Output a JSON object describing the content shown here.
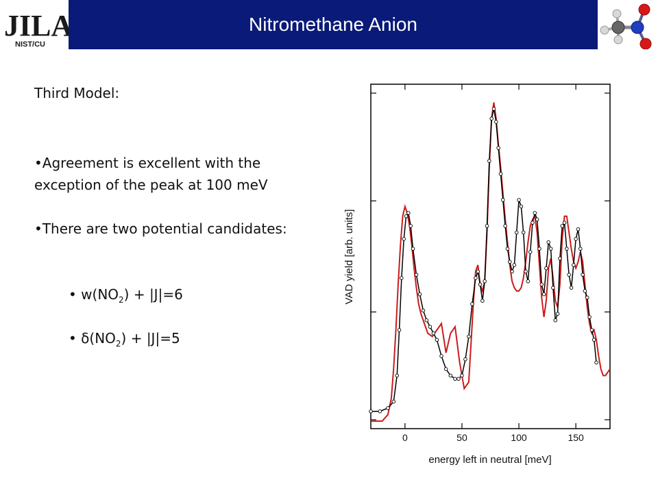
{
  "header": {
    "logo_text": "JILA",
    "logo_subtext": "NIST/CU",
    "title": "Nitromethane Anion",
    "molecule_icon": "nitromethane-molecule"
  },
  "content": {
    "model": "Third Model:",
    "bullet1": "•Agreement is excellent with the exception of the peak at 100 meV",
    "bullet2": "•There are two potential candidates:",
    "candidate1": {
      "prefix": "• w(NO",
      "sub": "2",
      "suffix": ") + |J|=6"
    },
    "candidate2": {
      "prefix": "• δ(NO",
      "sub": "2",
      "suffix": ") + |J|=5"
    }
  },
  "chart_data": {
    "type": "line",
    "xlabel": "energy left in neutral [meV]",
    "ylabel": "VAD yield [arb. units]",
    "xlim": [
      -30,
      180
    ],
    "ylim": [
      0,
      1
    ],
    "x_ticks": [
      0,
      50,
      100,
      150
    ],
    "colors": {
      "experiment": "#000000",
      "model": "#cc1a1a"
    },
    "series": [
      {
        "name": "",
        "style": "black line with open circle markers",
        "x": [
          -30,
          -22,
          -15,
          -10,
          -7,
          -5,
          -3,
          -1,
          1,
          3,
          5,
          7,
          10,
          13,
          16,
          19,
          22,
          25,
          28,
          32,
          36,
          40,
          44,
          47,
          50,
          53,
          56,
          59,
          62,
          64,
          66,
          68,
          70,
          72,
          74,
          76,
          78,
          80,
          82,
          84,
          86,
          88,
          90,
          92,
          94,
          96,
          98,
          100,
          102,
          104,
          106,
          108,
          110,
          112,
          114,
          116,
          118,
          120,
          122,
          124,
          126,
          128,
          130,
          132,
          134,
          136,
          138,
          140,
          142,
          144,
          146,
          148,
          150,
          152,
          154,
          156,
          158,
          160,
          162,
          164,
          166,
          168
        ],
        "y": [
          0.03,
          0.03,
          0.04,
          0.06,
          0.14,
          0.28,
          0.44,
          0.56,
          0.63,
          0.64,
          0.6,
          0.53,
          0.45,
          0.39,
          0.34,
          0.31,
          0.29,
          0.27,
          0.25,
          0.2,
          0.16,
          0.14,
          0.13,
          0.13,
          0.14,
          0.19,
          0.26,
          0.36,
          0.44,
          0.46,
          0.42,
          0.37,
          0.43,
          0.6,
          0.8,
          0.93,
          0.96,
          0.92,
          0.84,
          0.76,
          0.68,
          0.6,
          0.53,
          0.49,
          0.46,
          0.48,
          0.58,
          0.68,
          0.66,
          0.58,
          0.46,
          0.43,
          0.52,
          0.61,
          0.64,
          0.62,
          0.53,
          0.42,
          0.39,
          0.47,
          0.55,
          0.53,
          0.41,
          0.31,
          0.33,
          0.5,
          0.6,
          0.61,
          0.53,
          0.45,
          0.41,
          0.48,
          0.56,
          0.59,
          0.53,
          0.45,
          0.4,
          0.38,
          0.32,
          0.28,
          0.25,
          0.18
        ]
      },
      {
        "name": "",
        "style": "red line",
        "x": [
          -30,
          -20,
          -15,
          -12,
          -10,
          -8,
          -6,
          -4,
          -2,
          0,
          2,
          4,
          6,
          8,
          10,
          12,
          14,
          16,
          18,
          20,
          24,
          28,
          32,
          36,
          40,
          44,
          48,
          52,
          56,
          60,
          62,
          64,
          66,
          68,
          70,
          72,
          74,
          76,
          78,
          80,
          82,
          84,
          86,
          88,
          90,
          92,
          94,
          96,
          98,
          100,
          102,
          104,
          106,
          108,
          110,
          112,
          114,
          116,
          118,
          120,
          122,
          124,
          126,
          128,
          130,
          132,
          134,
          136,
          138,
          140,
          142,
          144,
          146,
          148,
          150,
          152,
          154,
          156,
          158,
          160,
          162,
          164,
          166,
          168,
          170,
          172,
          174,
          176,
          178,
          180
        ],
        "y": [
          0.0,
          0.0,
          0.02,
          0.07,
          0.16,
          0.28,
          0.42,
          0.54,
          0.63,
          0.66,
          0.64,
          0.6,
          0.54,
          0.47,
          0.41,
          0.36,
          0.33,
          0.31,
          0.29,
          0.27,
          0.26,
          0.28,
          0.3,
          0.21,
          0.27,
          0.29,
          0.18,
          0.1,
          0.12,
          0.36,
          0.46,
          0.48,
          0.42,
          0.4,
          0.43,
          0.58,
          0.78,
          0.93,
          0.98,
          0.93,
          0.85,
          0.78,
          0.7,
          0.62,
          0.55,
          0.48,
          0.43,
          0.41,
          0.4,
          0.4,
          0.41,
          0.44,
          0.49,
          0.55,
          0.6,
          0.62,
          0.63,
          0.58,
          0.48,
          0.38,
          0.32,
          0.37,
          0.47,
          0.5,
          0.44,
          0.37,
          0.35,
          0.42,
          0.56,
          0.63,
          0.63,
          0.58,
          0.53,
          0.49,
          0.47,
          0.49,
          0.52,
          0.49,
          0.42,
          0.35,
          0.3,
          0.27,
          0.28,
          0.25,
          0.2,
          0.16,
          0.14,
          0.14,
          0.15,
          0.16
        ]
      }
    ]
  }
}
